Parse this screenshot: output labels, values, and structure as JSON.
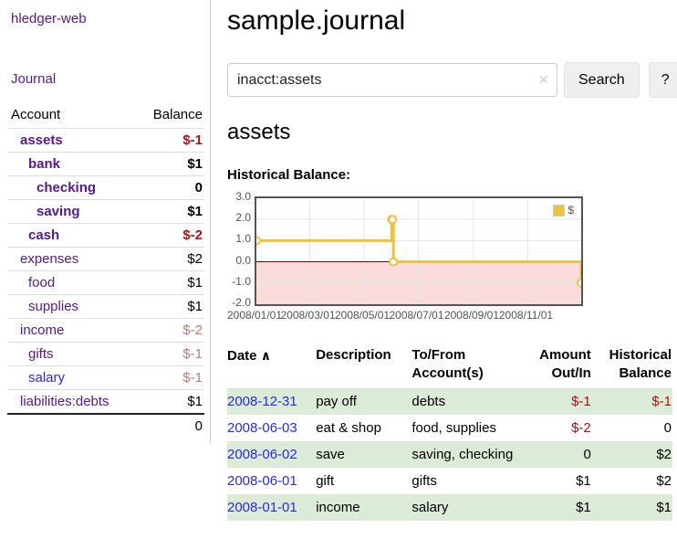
{
  "app": {
    "title": "hledger-web",
    "nav_journal": "Journal"
  },
  "sidebar": {
    "headers": {
      "account": "Account",
      "balance": "Balance"
    },
    "accounts": [
      {
        "name": "assets",
        "depth": 1,
        "bold": true,
        "balance": "$-1",
        "balance_class": "bal-neg-strong"
      },
      {
        "name": "bank",
        "depth": 2,
        "bold": true,
        "balance": "$1",
        "balance_class": "bal-strong"
      },
      {
        "name": "checking",
        "depth": 3,
        "bold": true,
        "balance": "0",
        "balance_class": "bal-strong"
      },
      {
        "name": "saving",
        "depth": 3,
        "bold": true,
        "balance": "$1",
        "balance_class": "bal-strong"
      },
      {
        "name": "cash",
        "depth": 2,
        "bold": true,
        "balance": "$-2",
        "balance_class": "bal-neg-strong"
      },
      {
        "name": "expenses",
        "depth": 1,
        "bold": false,
        "balance": "$2",
        "balance_class": "bal-plain"
      },
      {
        "name": "food",
        "depth": 2,
        "bold": false,
        "balance": "$1",
        "balance_class": "bal-plain"
      },
      {
        "name": "supplies",
        "depth": 2,
        "bold": false,
        "balance": "$1",
        "balance_class": "bal-plain"
      },
      {
        "name": "income",
        "depth": 1,
        "bold": false,
        "balance": "$-2",
        "balance_class": "bal-neg-muted"
      },
      {
        "name": "gifts",
        "depth": 2,
        "bold": false,
        "balance": "$-1",
        "balance_class": "bal-neg-muted"
      },
      {
        "name": "salary",
        "depth": 2,
        "bold": false,
        "blue": true,
        "balance": "$-1",
        "balance_class": "bal-neg-muted"
      },
      {
        "name": "liabilities:debts",
        "depth": 1,
        "bold": false,
        "balance": "$1",
        "balance_class": "bal-plain"
      }
    ],
    "total": "0"
  },
  "main": {
    "title": "sample.journal",
    "search": {
      "value": "inacct:assets",
      "clear_icon": "✕",
      "button": "Search",
      "help_button": "?"
    },
    "account_heading": "assets",
    "chart_heading": "Historical Balance:"
  },
  "chart_data": {
    "type": "line",
    "title": "Historical Balance:",
    "series": [
      {
        "name": "$",
        "color": "#edc240",
        "steps": true,
        "points": [
          [
            "2008-01-01",
            1
          ],
          [
            "2008-06-01",
            2
          ],
          [
            "2008-06-02",
            2
          ],
          [
            "2008-06-03",
            0
          ],
          [
            "2008-12-31",
            -1
          ]
        ]
      }
    ],
    "x_ticks": [
      "2008/01/01",
      "2008/03/01",
      "2008/05/01",
      "2008/07/01",
      "2008/09/01",
      "2008/11/01"
    ],
    "y_ticks": [
      3.0,
      2.0,
      1.0,
      0.0,
      -1.0,
      -2.0
    ],
    "xlim": [
      "2008-01-01",
      "2008-12-31"
    ],
    "ylim": [
      -2.0,
      3.0
    ],
    "grid": true,
    "legend_position": "top-right",
    "grid_color": "#e6e6e6",
    "zero_line_color": "#800000",
    "negative_region_color": "#fbdcdc",
    "marker": {
      "fill": "#ffffff",
      "stroke": "#edc240",
      "radius": 4
    }
  },
  "transactions": {
    "headers": {
      "date": "Date",
      "sort_icon": "∧",
      "description": "Description",
      "account": "To/From Account(s)",
      "amount": "Amount Out/In",
      "balance": "Historical Balance"
    },
    "rows": [
      {
        "date": "2008-12-31",
        "description": "pay off",
        "accounts": "debts",
        "amount": "$-1",
        "balance": "$-1"
      },
      {
        "date": "2008-06-03",
        "description": "eat & shop",
        "accounts": "food, supplies",
        "amount": "$-2",
        "balance": "0"
      },
      {
        "date": "2008-06-02",
        "description": "save",
        "accounts": "saving, checking",
        "amount": "0",
        "balance": "$2"
      },
      {
        "date": "2008-06-01",
        "description": "gift",
        "accounts": "gifts",
        "amount": "$1",
        "balance": "$2"
      },
      {
        "date": "2008-01-01",
        "description": "income",
        "accounts": "salary",
        "amount": "$1",
        "balance": "$1"
      }
    ]
  },
  "colors": {
    "link_purple": "#551a8b",
    "link_blue": "#2a2adf",
    "negative_strong": "#a31515",
    "negative_muted": "#b57c7c",
    "row_green": "#dcead8",
    "accent_gold": "#edc240",
    "chart_negative_bg": "#fbdcdc",
    "chart_zero_line": "#800000",
    "button_bg": "#efefef"
  }
}
